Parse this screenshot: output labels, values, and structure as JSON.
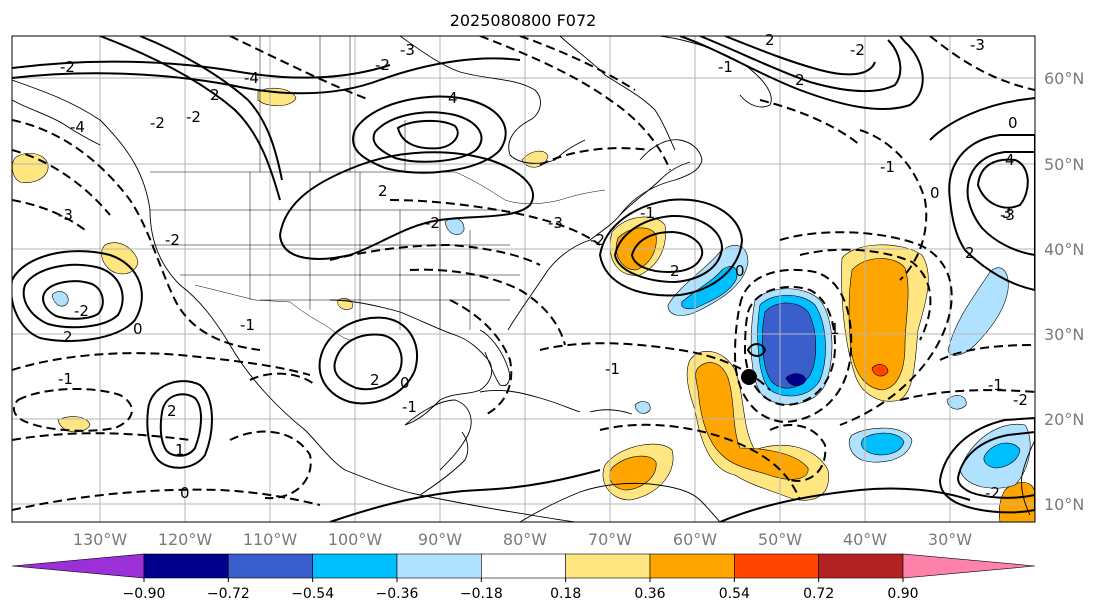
{
  "title": "2025080800 F072",
  "lon_labels": [
    "130°W",
    "120°W",
    "110°W",
    "100°W",
    "90°W",
    "80°W",
    "70°W",
    "60°W",
    "50°W",
    "40°W",
    "30°W"
  ],
  "lat_labels": [
    "60°N",
    "50°N",
    "40°N",
    "30°N",
    "20°N",
    "10°N"
  ],
  "colorbar": {
    "tick_labels": [
      "−0.90",
      "−0.72",
      "−0.54",
      "−0.36",
      "−0.18",
      "0.18",
      "0.36",
      "0.54",
      "0.72",
      "0.90"
    ],
    "colors": [
      "#9b30d9",
      "#00008b",
      "#3a5fcd",
      "#00bfff",
      "#b0e2ff",
      "#ffffff",
      "#ffe680",
      "#ffa500",
      "#ff4500",
      "#b22222",
      "#ff82ab"
    ]
  },
  "contour_labels": {
    "c1": "-2",
    "c2": "4",
    "c3": "-4",
    "c4": "-2",
    "c5": "2",
    "c6": "-2",
    "c7": "-2",
    "c8": "2",
    "c9": "-3",
    "c10": "-4",
    "c11": "-2",
    "c12": "-3",
    "c13": "2",
    "c14": "-2",
    "c15": "-1",
    "c16": "0",
    "c17": "-3",
    "c18": "2",
    "c19": "4",
    "c20": "0",
    "c21": "-1",
    "c22": "2",
    "c23": "-2",
    "c24": "-1",
    "c25": "0",
    "c26": "-1",
    "c27": "1",
    "c28": "-2",
    "c29": "2",
    "c30": "0",
    "c31": "-1",
    "c32": "2",
    "c33": "1",
    "c34": "-1",
    "c35": "0",
    "c36": "-1",
    "c37": "2",
    "c38": "-2",
    "c39": "-3",
    "c40": "0",
    "c41": "3",
    "c42": "-2",
    "c43": "2",
    "c44": "-1",
    "c45": "-2",
    "c46": "-3"
  }
}
